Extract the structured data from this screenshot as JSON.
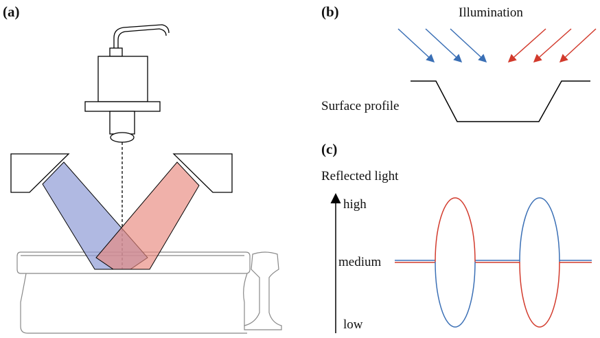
{
  "panels": {
    "a": {
      "label": "(a)"
    },
    "b": {
      "label": "(b)",
      "illumination": "Illumination",
      "surface": "Surface profile"
    },
    "c": {
      "label": "(c)",
      "axis": "Reflected light",
      "high": "high",
      "medium": "medium",
      "low": "low"
    }
  }
}
